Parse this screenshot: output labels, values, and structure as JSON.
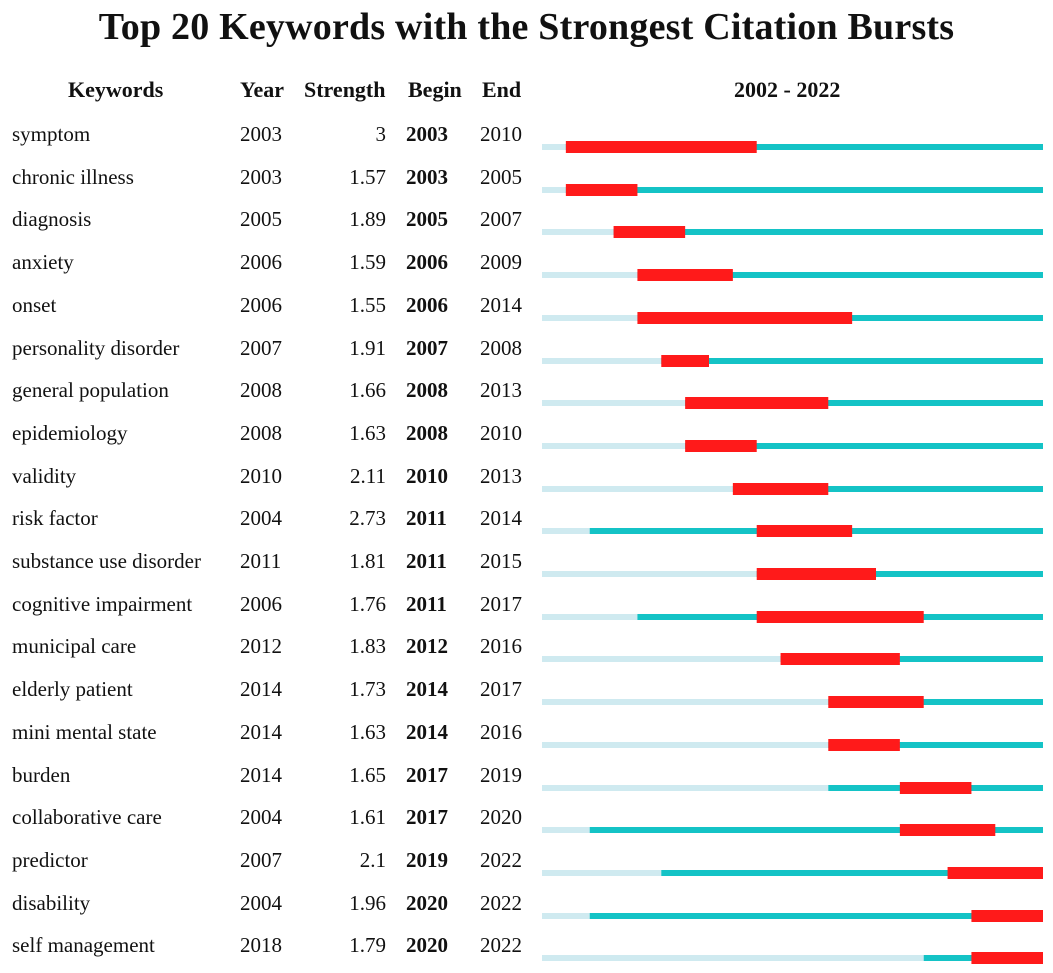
{
  "chart_data": {
    "type": "table",
    "title": "Top 20 Keywords with the Strongest Citation Bursts",
    "columns": [
      "Keywords",
      "Year",
      "Strength",
      "Begin",
      "End"
    ],
    "timeline_label": "2002 - 2022",
    "timeline_range": [
      2002,
      2022
    ],
    "colors": {
      "before_first_year": "#cfeaf0",
      "after_first_year": "#14c3c6",
      "burst": "#ff1a1a"
    },
    "rows": [
      {
        "keyword": "symptom",
        "year": "2003",
        "strength": "3",
        "begin": "2003",
        "end": "2010"
      },
      {
        "keyword": "chronic illness",
        "year": "2003",
        "strength": "1.57",
        "begin": "2003",
        "end": "2005"
      },
      {
        "keyword": "diagnosis",
        "year": "2005",
        "strength": "1.89",
        "begin": "2005",
        "end": "2007"
      },
      {
        "keyword": "anxiety",
        "year": "2006",
        "strength": "1.59",
        "begin": "2006",
        "end": "2009"
      },
      {
        "keyword": "onset",
        "year": "2006",
        "strength": "1.55",
        "begin": "2006",
        "end": "2014"
      },
      {
        "keyword": "personality disorder",
        "year": "2007",
        "strength": "1.91",
        "begin": "2007",
        "end": "2008"
      },
      {
        "keyword": "general population",
        "year": "2008",
        "strength": "1.66",
        "begin": "2008",
        "end": "2013"
      },
      {
        "keyword": "epidemiology",
        "year": "2008",
        "strength": "1.63",
        "begin": "2008",
        "end": "2010"
      },
      {
        "keyword": "validity",
        "year": "2010",
        "strength": "2.11",
        "begin": "2010",
        "end": "2013"
      },
      {
        "keyword": "risk factor",
        "year": "2004",
        "strength": "2.73",
        "begin": "2011",
        "end": "2014"
      },
      {
        "keyword": "substance use disorder",
        "year": "2011",
        "strength": "1.81",
        "begin": "2011",
        "end": "2015"
      },
      {
        "keyword": "cognitive impairment",
        "year": "2006",
        "strength": "1.76",
        "begin": "2011",
        "end": "2017"
      },
      {
        "keyword": "municipal care",
        "year": "2012",
        "strength": "1.83",
        "begin": "2012",
        "end": "2016"
      },
      {
        "keyword": "elderly patient",
        "year": "2014",
        "strength": "1.73",
        "begin": "2014",
        "end": "2017"
      },
      {
        "keyword": "mini mental state",
        "year": "2014",
        "strength": "1.63",
        "begin": "2014",
        "end": "2016"
      },
      {
        "keyword": "burden",
        "year": "2014",
        "strength": "1.65",
        "begin": "2017",
        "end": "2019"
      },
      {
        "keyword": "collaborative care",
        "year": "2004",
        "strength": "1.61",
        "begin": "2017",
        "end": "2020"
      },
      {
        "keyword": "predictor",
        "year": "2007",
        "strength": "2.1",
        "begin": "2019",
        "end": "2022"
      },
      {
        "keyword": "disability",
        "year": "2004",
        "strength": "1.96",
        "begin": "2020",
        "end": "2022"
      },
      {
        "keyword": "self management",
        "year": "2018",
        "strength": "1.79",
        "begin": "2020",
        "end": "2022"
      }
    ]
  }
}
